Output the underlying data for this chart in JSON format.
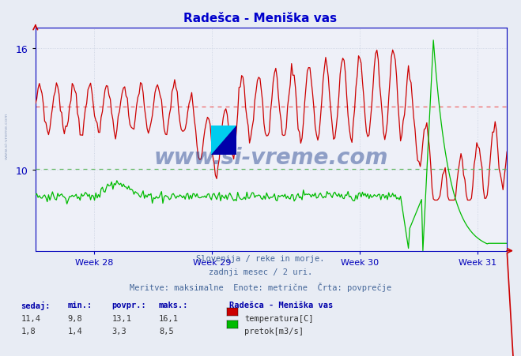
{
  "title": "Radešca - Meniška vas",
  "title_color": "#0000cc",
  "bg_color": "#e8ecf4",
  "plot_bg_color": "#eef0f8",
  "grid_color": "#c8d0e0",
  "axis_color": "#0000bb",
  "x_tick_labels": [
    "Week 28",
    "Week 29",
    "Week 30",
    "Week 31"
  ],
  "ylim_temp": [
    6,
    17
  ],
  "ylim_flow": [
    0,
    9
  ],
  "temp_color": "#cc0000",
  "flow_color": "#00bb00",
  "avg_temp_color": "#ee6666",
  "avg_flow_color": "#66bb66",
  "avg_temp": 13.1,
  "avg_flow": 3.3,
  "temp_min": 9.8,
  "temp_max": 16.1,
  "temp_current": 11.4,
  "flow_min": 1.4,
  "flow_max": 8.5,
  "flow_current": 1.8,
  "watermark": "www.si-vreme.com",
  "footer_line1": "Slovenija / reke in morje.",
  "footer_line2": "zadnji mesec / 2 uri.",
  "footer_line3": "Meritve: maksimalne  Enote: metrične  Črta: povprečje",
  "n_points": 360,
  "label_sedaj": "sedaj:",
  "label_min": "min.:",
  "label_povpr": "povpr.:",
  "label_maks": "maks.:",
  "station": "Radešca - Meniška vas",
  "label_temp": "temperatura[C]",
  "label_flow": "pretok[m3/s]",
  "temp_vals": [
    "11,4",
    "9,8",
    "13,1",
    "16,1"
  ],
  "flow_vals": [
    "1,8",
    "1,4",
    "3,3",
    "8,5"
  ]
}
